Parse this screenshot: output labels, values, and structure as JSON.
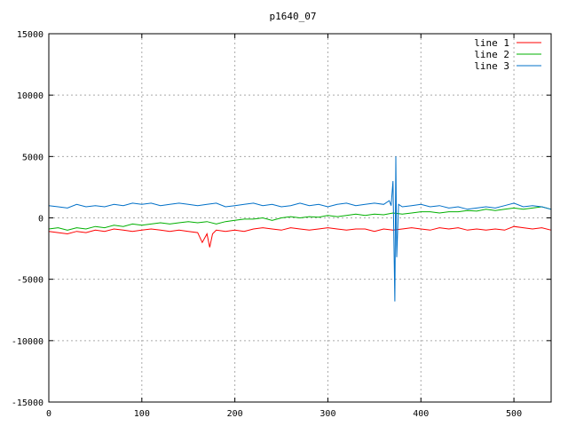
{
  "chart_data": {
    "type": "line",
    "title": "p1640_07",
    "xlabel": "",
    "ylabel": "",
    "xlim": [
      0,
      540
    ],
    "ylim": [
      -15000,
      15000
    ],
    "xticks": [
      0,
      100,
      200,
      300,
      400,
      500
    ],
    "yticks": [
      -15000,
      -10000,
      -5000,
      0,
      5000,
      10000,
      15000
    ],
    "grid": true,
    "legend_position": "top-right",
    "series": [
      {
        "name": "line 1",
        "color": "#ff0000",
        "points": [
          [
            0,
            -1100
          ],
          [
            10,
            -1200
          ],
          [
            20,
            -1300
          ],
          [
            30,
            -1100
          ],
          [
            40,
            -1200
          ],
          [
            50,
            -1000
          ],
          [
            60,
            -1100
          ],
          [
            70,
            -900
          ],
          [
            80,
            -1000
          ],
          [
            90,
            -1100
          ],
          [
            100,
            -1000
          ],
          [
            110,
            -900
          ],
          [
            120,
            -1000
          ],
          [
            130,
            -1100
          ],
          [
            140,
            -1000
          ],
          [
            150,
            -1100
          ],
          [
            160,
            -1200
          ],
          [
            165,
            -2000
          ],
          [
            170,
            -1300
          ],
          [
            173,
            -2400
          ],
          [
            176,
            -1300
          ],
          [
            180,
            -1000
          ],
          [
            190,
            -1100
          ],
          [
            200,
            -1000
          ],
          [
            210,
            -1100
          ],
          [
            220,
            -900
          ],
          [
            230,
            -800
          ],
          [
            240,
            -900
          ],
          [
            250,
            -1000
          ],
          [
            260,
            -800
          ],
          [
            270,
            -900
          ],
          [
            280,
            -1000
          ],
          [
            290,
            -900
          ],
          [
            300,
            -800
          ],
          [
            310,
            -900
          ],
          [
            320,
            -1000
          ],
          [
            330,
            -900
          ],
          [
            340,
            -900
          ],
          [
            350,
            -1100
          ],
          [
            360,
            -900
          ],
          [
            370,
            -1000
          ],
          [
            380,
            -900
          ],
          [
            390,
            -800
          ],
          [
            400,
            -900
          ],
          [
            410,
            -1000
          ],
          [
            420,
            -800
          ],
          [
            430,
            -900
          ],
          [
            440,
            -800
          ],
          [
            450,
            -1000
          ],
          [
            460,
            -900
          ],
          [
            470,
            -1000
          ],
          [
            480,
            -900
          ],
          [
            490,
            -1000
          ],
          [
            500,
            -700
          ],
          [
            510,
            -800
          ],
          [
            520,
            -900
          ],
          [
            530,
            -800
          ],
          [
            540,
            -1000
          ]
        ]
      },
      {
        "name": "line 2",
        "color": "#00b000",
        "points": [
          [
            0,
            -900
          ],
          [
            10,
            -800
          ],
          [
            20,
            -1000
          ],
          [
            30,
            -800
          ],
          [
            40,
            -900
          ],
          [
            50,
            -700
          ],
          [
            60,
            -800
          ],
          [
            70,
            -600
          ],
          [
            80,
            -700
          ],
          [
            90,
            -500
          ],
          [
            100,
            -600
          ],
          [
            110,
            -500
          ],
          [
            120,
            -400
          ],
          [
            130,
            -500
          ],
          [
            140,
            -400
          ],
          [
            150,
            -300
          ],
          [
            160,
            -400
          ],
          [
            170,
            -300
          ],
          [
            180,
            -500
          ],
          [
            190,
            -300
          ],
          [
            200,
            -200
          ],
          [
            210,
            -100
          ],
          [
            220,
            -100
          ],
          [
            230,
            0
          ],
          [
            240,
            -200
          ],
          [
            250,
            0
          ],
          [
            260,
            100
          ],
          [
            270,
            0
          ],
          [
            280,
            100
          ],
          [
            290,
            50
          ],
          [
            300,
            200
          ],
          [
            310,
            100
          ],
          [
            320,
            200
          ],
          [
            330,
            300
          ],
          [
            340,
            200
          ],
          [
            350,
            300
          ],
          [
            360,
            250
          ],
          [
            370,
            400
          ],
          [
            380,
            300
          ],
          [
            390,
            400
          ],
          [
            400,
            500
          ],
          [
            410,
            500
          ],
          [
            420,
            400
          ],
          [
            430,
            500
          ],
          [
            440,
            500
          ],
          [
            450,
            600
          ],
          [
            460,
            550
          ],
          [
            470,
            700
          ],
          [
            480,
            600
          ],
          [
            490,
            700
          ],
          [
            500,
            800
          ],
          [
            510,
            700
          ],
          [
            520,
            800
          ],
          [
            530,
            900
          ],
          [
            540,
            700
          ]
        ]
      },
      {
        "name": "line 3",
        "color": "#0070c8",
        "points": [
          [
            0,
            1000
          ],
          [
            10,
            900
          ],
          [
            20,
            800
          ],
          [
            30,
            1100
          ],
          [
            40,
            900
          ],
          [
            50,
            1000
          ],
          [
            60,
            900
          ],
          [
            70,
            1100
          ],
          [
            80,
            1000
          ],
          [
            90,
            1200
          ],
          [
            100,
            1100
          ],
          [
            110,
            1200
          ],
          [
            120,
            1000
          ],
          [
            130,
            1100
          ],
          [
            140,
            1200
          ],
          [
            150,
            1100
          ],
          [
            160,
            1000
          ],
          [
            170,
            1100
          ],
          [
            180,
            1200
          ],
          [
            190,
            900
          ],
          [
            200,
            1000
          ],
          [
            210,
            1100
          ],
          [
            220,
            1200
          ],
          [
            230,
            1000
          ],
          [
            240,
            1100
          ],
          [
            250,
            900
          ],
          [
            260,
            1000
          ],
          [
            270,
            1200
          ],
          [
            280,
            1000
          ],
          [
            290,
            1100
          ],
          [
            300,
            900
          ],
          [
            310,
            1100
          ],
          [
            320,
            1200
          ],
          [
            330,
            1000
          ],
          [
            340,
            1100
          ],
          [
            350,
            1200
          ],
          [
            360,
            1100
          ],
          [
            366,
            1400
          ],
          [
            368,
            1000
          ],
          [
            370,
            3000
          ],
          [
            372,
            -6800
          ],
          [
            373,
            5000
          ],
          [
            374,
            -3200
          ],
          [
            376,
            1100
          ],
          [
            380,
            900
          ],
          [
            390,
            1000
          ],
          [
            400,
            1100
          ],
          [
            410,
            900
          ],
          [
            420,
            1000
          ],
          [
            430,
            800
          ],
          [
            440,
            900
          ],
          [
            450,
            700
          ],
          [
            460,
            800
          ],
          [
            470,
            900
          ],
          [
            480,
            800
          ],
          [
            490,
            1000
          ],
          [
            500,
            1200
          ],
          [
            510,
            900
          ],
          [
            520,
            1000
          ],
          [
            530,
            900
          ],
          [
            540,
            700
          ]
        ]
      }
    ]
  }
}
